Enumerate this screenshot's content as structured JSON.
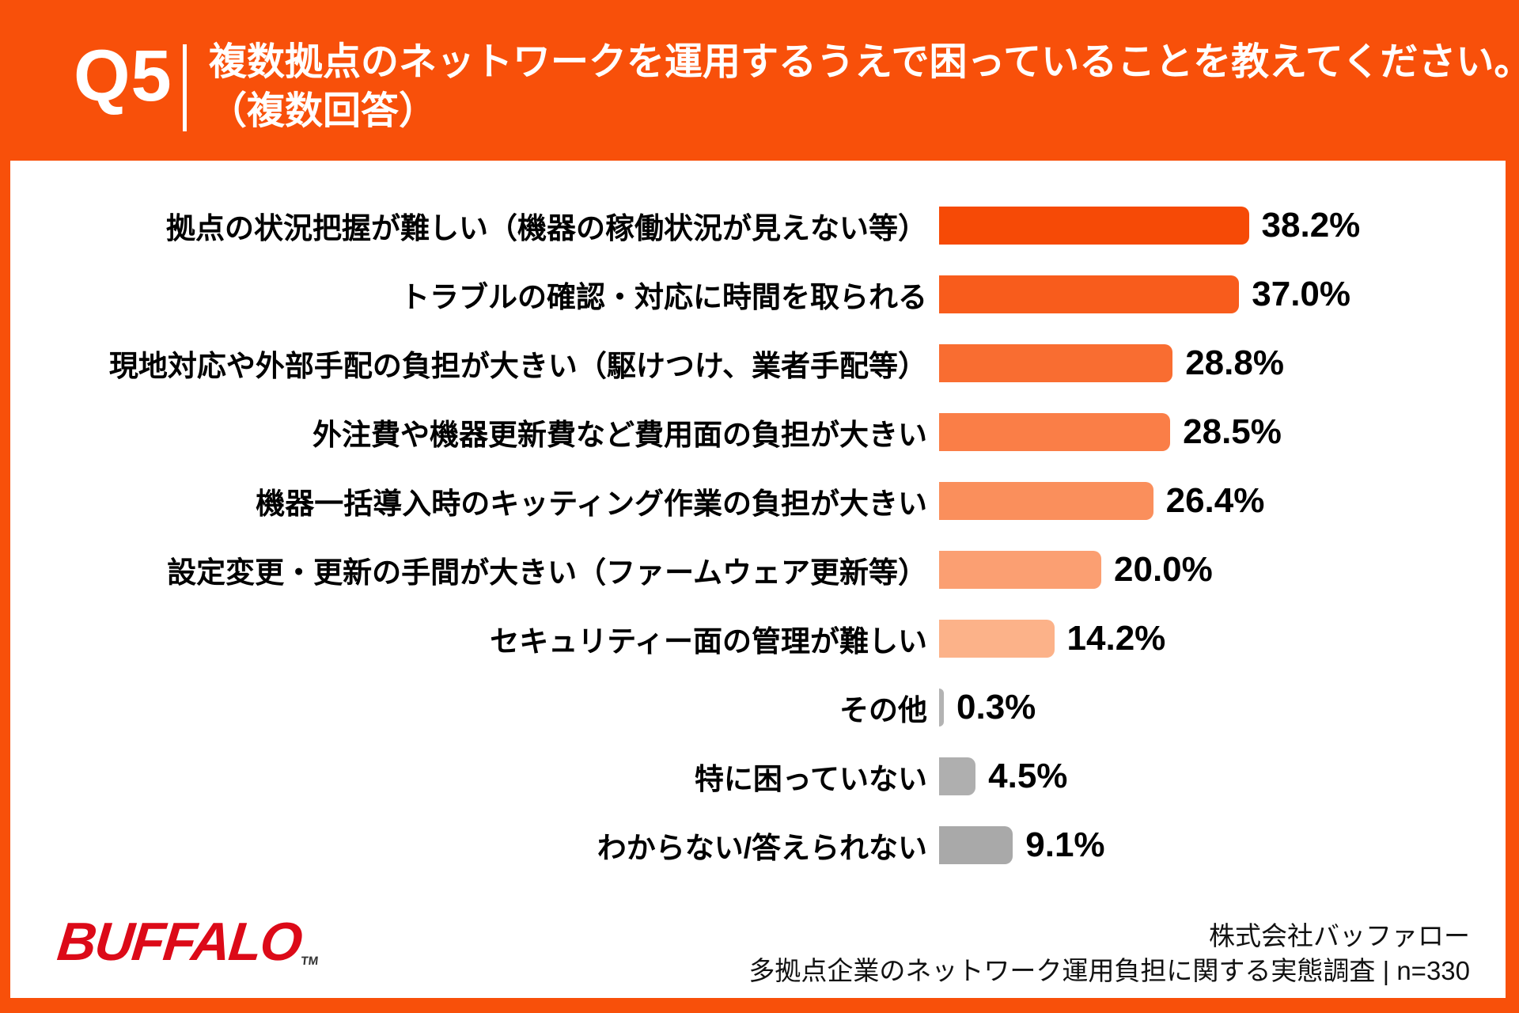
{
  "header": {
    "question_no": "Q5",
    "title_line1": "複数拠点のネットワークを運用するうえで困っていることを教えてください。",
    "title_line2": "（複数回答）"
  },
  "chart_data": {
    "type": "bar",
    "orientation": "horizontal",
    "title": "複数拠点のネットワークを運用するうえで困っていること（複数回答）",
    "unit": "%",
    "xlim": [
      0,
      40
    ],
    "grid": false,
    "value_label_position": "end-of-bar",
    "categories": [
      "拠点の状況把握が難しい（機器の稼働状況が見えない等）",
      "トラブルの確認・対応に時間を取られる",
      "現地対応や外部手配の負担が大きい（駆けつけ、業者手配等）",
      "外注費や機器更新費など費用面の負担が大きい",
      "機器一括導入時のキッティング作業の負担が大きい",
      "設定変更・更新の手間が大きい（ファームウェア更新等）",
      "セキュリティー面の管理が難しい",
      "その他",
      "特に困っていない",
      "わからない/答えられない"
    ],
    "values": [
      38.2,
      37.0,
      28.8,
      28.5,
      26.4,
      20.0,
      14.2,
      0.3,
      4.5,
      9.1
    ],
    "value_labels": [
      "38.2%",
      "37.0%",
      "28.8%",
      "28.5%",
      "26.4%",
      "20.0%",
      "14.2%",
      "0.3%",
      "4.5%",
      "9.1%"
    ],
    "bar_colors": [
      "#F64A06",
      "#F85C1C",
      "#F96D31",
      "#FA7E47",
      "#FA8F5C",
      "#FB9F72",
      "#FCB289",
      "#B3B3B3",
      "#AFAFAF",
      "#A9A9A9"
    ]
  },
  "footer": {
    "logo_text": "BUFFALO",
    "logo_tm": "TM",
    "source_line1": "株式会社バッファロー",
    "source_line2": "多拠点企業のネットワーク運用負担に関する実態調査 | n=330"
  },
  "colors": {
    "background_orange": "#F8500A",
    "card_white": "#FFFFFF",
    "text_black": "#000000",
    "header_text_white": "#FFFFFF",
    "logo_red": "#DC0A18"
  }
}
